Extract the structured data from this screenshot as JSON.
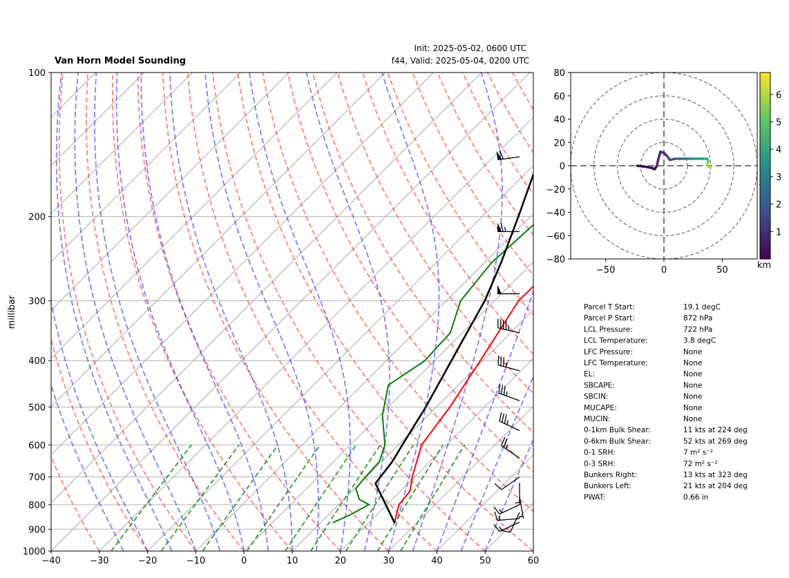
{
  "title": "Van Horn Model Sounding",
  "init_label": "Init: 2025-05-02, 0600 UTC",
  "valid_label": "f44, Valid: 2025-05-04, 0200 UTC",
  "skewt": {
    "ylabel": "millibar",
    "x_ticks": [
      -40,
      -30,
      -20,
      -10,
      0,
      10,
      20,
      30,
      40,
      50,
      60
    ],
    "p_ticks": [
      100,
      200,
      300,
      400,
      500,
      600,
      700,
      800,
      900,
      1000
    ],
    "xlim": [
      -40,
      60
    ],
    "plim": [
      1000,
      100
    ]
  },
  "hodograph": {
    "x_ticks": [
      -50,
      0,
      50
    ],
    "y_ticks": [
      80,
      60,
      40,
      20,
      0,
      -20,
      -40,
      -60,
      -80
    ],
    "colorbar_ticks": [
      "1",
      "2",
      "3",
      "4",
      "5",
      "6"
    ],
    "colorbar_label": "km"
  },
  "parameters": [
    {
      "label": "Parcel T Start:",
      "value": "19.1 degC"
    },
    {
      "label": "Parcel P Start:",
      "value": "872 hPa"
    },
    {
      "label": "LCL Pressure:",
      "value": "722 hPa"
    },
    {
      "label": "LCL Temperature:",
      "value": "3.8 degC"
    },
    {
      "label": "LFC Pressure:",
      "value": "None"
    },
    {
      "label": "LFC Temperature:",
      "value": "None"
    },
    {
      "label": "EL:",
      "value": "None"
    },
    {
      "label": "SBCAPE:",
      "value": "None"
    },
    {
      "label": "SBCIN:",
      "value": "None"
    },
    {
      "label": "MUCAPE:",
      "value": "None"
    },
    {
      "label": "MUCIN:",
      "value": "None"
    },
    {
      "label": "0-1km Bulk Shear:",
      "value": "11 kts at 224 deg"
    },
    {
      "label": "0-6km Bulk Shear:",
      "value": "52 kts at 269 deg"
    },
    {
      "label": "0-1 SRH:",
      "value": "7 m² s⁻²"
    },
    {
      "label": "0-3 SRH:",
      "value": "72 m² s⁻²"
    },
    {
      "label": "Bunkers Right:",
      "value": "13 kts at 323 deg"
    },
    {
      "label": "Bunkers Left:",
      "value": "21 kts at 204 deg"
    },
    {
      "label": "PWAT:",
      "value": "0.66 in"
    }
  ],
  "colors": {
    "temperature": "#ff0000",
    "dewpoint": "#008000",
    "parcel": "#000000",
    "dry_adiabat": "#ff0000",
    "moist_adiabat": "#0000ff",
    "mixing_ratio": "#008000",
    "isotherm": "#808080"
  },
  "chart_data": [
    {
      "type": "line",
      "name": "skew-t",
      "temperature": [
        {
          "p": 872,
          "t": 25.3
        },
        {
          "p": 800,
          "t": 22.5
        },
        {
          "p": 750,
          "t": 22.0
        },
        {
          "p": 700,
          "t": 19.5
        },
        {
          "p": 600,
          "t": 14.8
        },
        {
          "p": 500,
          "t": 12.8
        },
        {
          "p": 400,
          "t": 9.5
        },
        {
          "p": 300,
          "t": 5.0
        },
        {
          "p": 250,
          "t": 5.2
        },
        {
          "p": 200,
          "t": 9.5
        },
        {
          "p": 160,
          "t": 18.0
        },
        {
          "p": 130,
          "t": 27.0
        },
        {
          "p": 100,
          "t": 35.0
        }
      ],
      "dewpoint": [
        {
          "p": 872,
          "t": 12.5
        },
        {
          "p": 840,
          "t": 14.5
        },
        {
          "p": 800,
          "t": 16.3
        },
        {
          "p": 780,
          "t": 13.2
        },
        {
          "p": 740,
          "t": 10.2
        },
        {
          "p": 700,
          "t": 9.8
        },
        {
          "p": 650,
          "t": 9.5
        },
        {
          "p": 600,
          "t": 7.2
        },
        {
          "p": 520,
          "t": 0.5
        },
        {
          "p": 450,
          "t": -4.5
        },
        {
          "p": 400,
          "t": -2.0
        },
        {
          "p": 350,
          "t": -2.5
        },
        {
          "p": 300,
          "t": -7.0
        },
        {
          "p": 250,
          "t": -8.5
        },
        {
          "p": 200,
          "t": -7.5
        },
        {
          "p": 140,
          "t": -2.0
        },
        {
          "p": 115,
          "t": 1.5
        },
        {
          "p": 100,
          "t": 3.5
        }
      ],
      "parcel": [
        {
          "p": 872,
          "t": 25.3
        },
        {
          "p": 722,
          "t": 13.2
        },
        {
          "p": 650,
          "t": 12.2
        },
        {
          "p": 600,
          "t": 10.8
        },
        {
          "p": 500,
          "t": 7.8
        },
        {
          "p": 400,
          "t": 3.5
        },
        {
          "p": 300,
          "t": -2.0
        },
        {
          "p": 250,
          "t": -6.5
        },
        {
          "p": 200,
          "t": -12.5
        },
        {
          "p": 150,
          "t": -20.5
        },
        {
          "p": 120,
          "t": -28.0
        },
        {
          "p": 100,
          "t": -34.0
        }
      ],
      "wind_barbs": [
        {
          "p": 150,
          "dir": 262,
          "kts": 60
        },
        {
          "p": 215,
          "dir": 270,
          "kts": 65
        },
        {
          "p": 290,
          "dir": 270,
          "kts": 50
        },
        {
          "p": 350,
          "dir": 283,
          "kts": 45
        },
        {
          "p": 420,
          "dir": 285,
          "kts": 35
        },
        {
          "p": 485,
          "dir": 290,
          "kts": 35
        },
        {
          "p": 560,
          "dir": 295,
          "kts": 35
        },
        {
          "p": 640,
          "dir": 305,
          "kts": 25
        },
        {
          "p": 700,
          "dir": 235,
          "kts": 10
        },
        {
          "p": 720,
          "dir": 180,
          "kts": 5
        },
        {
          "p": 770,
          "dir": 170,
          "kts": 5
        },
        {
          "p": 800,
          "dir": 245,
          "kts": 15
        },
        {
          "p": 830,
          "dir": 205,
          "kts": 10
        },
        {
          "p": 855,
          "dir": 265,
          "kts": 15
        },
        {
          "p": 870,
          "dir": 245,
          "kts": 15
        }
      ]
    },
    {
      "type": "line",
      "name": "hodograph",
      "xlim": [
        -80,
        80
      ],
      "ylim": [
        -80,
        80
      ],
      "u": [
        -23,
        -15,
        -10,
        -8,
        -6,
        -5,
        -3,
        0,
        3,
        5,
        10,
        15,
        20,
        25,
        30,
        35,
        37,
        38,
        37,
        38,
        40
      ],
      "v": [
        0,
        -1,
        -2,
        -3,
        0,
        5,
        12,
        11,
        8,
        5,
        6,
        6,
        6,
        6,
        6,
        6,
        6,
        4,
        1,
        -1,
        -1
      ],
      "height_km": [
        0,
        0.2,
        0.4,
        0.5,
        0.7,
        0.9,
        1.1,
        1.3,
        1.6,
        1.9,
        2.3,
        2.7,
        3.1,
        3.5,
        3.9,
        4.3,
        4.7,
        5.1,
        5.5,
        5.9,
        6.3
      ],
      "colorbar_range": [
        0,
        6.8
      ]
    }
  ]
}
